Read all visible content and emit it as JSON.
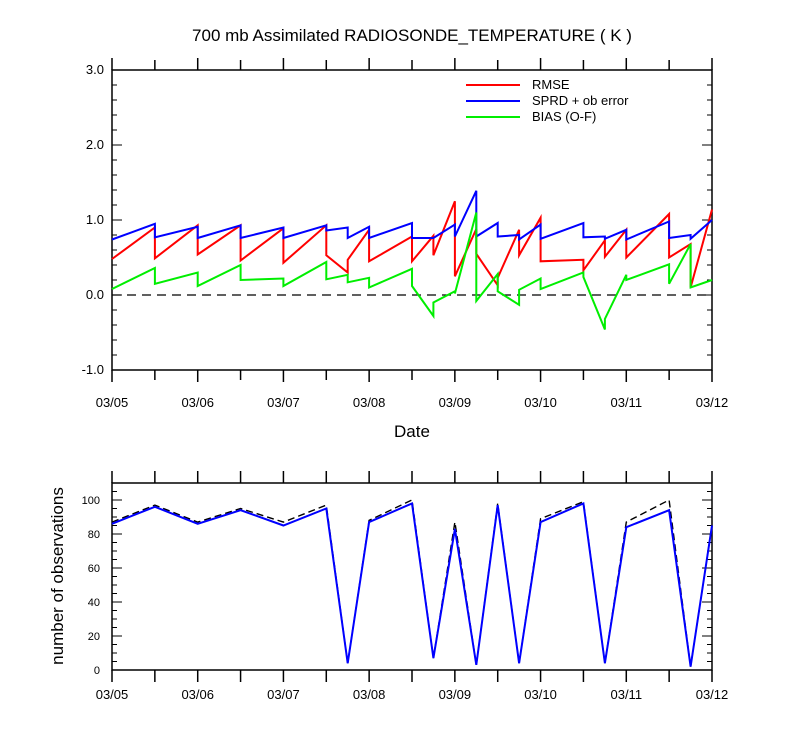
{
  "chart_data": [
    {
      "type": "line",
      "title": "700 mb Assimilated RADIOSONDE_TEMPERATURE ( K )",
      "xlabel": "Date",
      "ylabel": "",
      "x_tick_labels": [
        "03/05",
        "03/06",
        "03/07",
        "03/08",
        "03/09",
        "03/10",
        "03/11",
        "03/12"
      ],
      "y_tick_labels": [
        "-1.0",
        "0.0",
        "1.0",
        "2.0",
        "3.0"
      ],
      "xlim": [
        0,
        7
      ],
      "ylim": [
        -1,
        3
      ],
      "reference_line": 0,
      "legend": "top-right",
      "series": [
        {
          "name": "RMSE",
          "color": "#ff0000",
          "x": [
            0,
            0.5,
            0.5,
            1,
            1,
            1.5,
            1.5,
            2,
            2,
            2.5,
            2.5,
            2.75,
            2.75,
            3,
            3,
            3.5,
            3.5,
            3.75,
            3.75,
            4,
            4,
            4.25,
            4.25,
            4.5,
            4.5,
            4.75,
            4.75,
            5,
            5,
            5.5,
            5.5,
            5.75,
            5.75,
            6,
            6,
            6.5,
            6.5,
            6.75,
            6.75,
            7
          ],
          "y": [
            0.48,
            0.9,
            0.49,
            0.93,
            0.54,
            0.93,
            0.46,
            0.89,
            0.43,
            0.93,
            0.53,
            0.3,
            0.47,
            0.87,
            0.45,
            0.78,
            0.45,
            0.79,
            0.53,
            1.25,
            0.25,
            0.88,
            0.55,
            0.13,
            0.23,
            0.87,
            0.53,
            1.03,
            0.45,
            0.47,
            0.33,
            0.73,
            0.51,
            0.87,
            0.5,
            1.08,
            0.5,
            0.68,
            0.1,
            1.14
          ]
        },
        {
          "name": "SPRD + ob error",
          "color": "#0000ff",
          "x": [
            0,
            0.5,
            0.5,
            1,
            1,
            1.5,
            1.5,
            2,
            2,
            2.5,
            2.5,
            2.75,
            2.75,
            3,
            3,
            3.5,
            3.5,
            3.75,
            3.75,
            4,
            4,
            4.25,
            4.25,
            4.5,
            4.5,
            4.75,
            4.75,
            5,
            5,
            5.5,
            5.5,
            5.75,
            5.75,
            6,
            6,
            6.5,
            6.5,
            6.75,
            6.75,
            7
          ],
          "y": [
            0.74,
            0.95,
            0.77,
            0.91,
            0.76,
            0.93,
            0.76,
            0.9,
            0.76,
            0.93,
            0.86,
            0.9,
            0.76,
            0.91,
            0.76,
            0.96,
            0.76,
            0.76,
            0.76,
            0.94,
            0.78,
            1.39,
            0.78,
            0.96,
            0.78,
            0.8,
            0.74,
            0.94,
            0.75,
            0.96,
            0.77,
            0.78,
            0.75,
            0.87,
            0.74,
            0.98,
            0.76,
            0.8,
            0.75,
            1.0
          ]
        },
        {
          "name": "BIAS (O-F)",
          "color": "#00ee00",
          "x": [
            0,
            0.5,
            0.5,
            1,
            1,
            1.5,
            1.5,
            2,
            2,
            2.5,
            2.5,
            2.75,
            2.75,
            3,
            3,
            3.5,
            3.5,
            3.75,
            3.75,
            4,
            4,
            4.25,
            4.25,
            4.5,
            4.5,
            4.75,
            4.75,
            5,
            5,
            5.5,
            5.5,
            5.75,
            5.75,
            6,
            6,
            6.5,
            6.5,
            6.75,
            6.75,
            7
          ],
          "y": [
            0.08,
            0.36,
            0.15,
            0.3,
            0.12,
            0.4,
            0.2,
            0.22,
            0.12,
            0.44,
            0.21,
            0.27,
            0.17,
            0.23,
            0.1,
            0.35,
            0.12,
            -0.28,
            -0.1,
            0.05,
            0.02,
            1.1,
            -0.08,
            0.28,
            0.05,
            -0.13,
            0.07,
            0.22,
            0.08,
            0.3,
            0.24,
            -0.46,
            -0.32,
            0.27,
            0.2,
            0.41,
            0.15,
            0.68,
            0.1,
            0.2
          ]
        }
      ]
    },
    {
      "type": "line",
      "title": "",
      "xlabel": "",
      "ylabel": "number of observations",
      "x_tick_labels": [
        "03/05",
        "03/06",
        "03/07",
        "03/08",
        "03/09",
        "03/10",
        "03/11",
        "03/12"
      ],
      "y_tick_labels": [
        "0",
        "20",
        "40",
        "60",
        "80",
        "100"
      ],
      "xlim": [
        0,
        7
      ],
      "ylim": [
        0,
        110
      ],
      "series": [
        {
          "style": "dashed",
          "color": "#000000",
          "x": [
            0,
            0.5,
            1,
            1.5,
            2,
            2.5,
            2.75,
            3,
            3.5,
            3.75,
            4,
            4.25,
            4.5,
            4.75,
            5,
            5.5,
            5.75,
            6,
            6.5,
            6.75,
            7
          ],
          "y": [
            87,
            97,
            87,
            95,
            87,
            97,
            4,
            88,
            100,
            7,
            87,
            3,
            98,
            4,
            89,
            99,
            4,
            87,
            100,
            2,
            85
          ]
        },
        {
          "style": "solid",
          "color": "#0000ff",
          "x": [
            0,
            0.5,
            1,
            1.5,
            2,
            2.5,
            2.75,
            3,
            3.5,
            3.75,
            4,
            4.25,
            4.5,
            4.75,
            5,
            5.5,
            5.75,
            6,
            6.5,
            6.75,
            7
          ],
          "y": [
            86,
            96,
            86,
            94,
            85,
            95,
            4,
            87,
            98,
            7,
            83,
            3,
            97,
            4,
            87,
            98,
            4,
            84,
            94,
            2,
            85
          ]
        }
      ]
    }
  ]
}
